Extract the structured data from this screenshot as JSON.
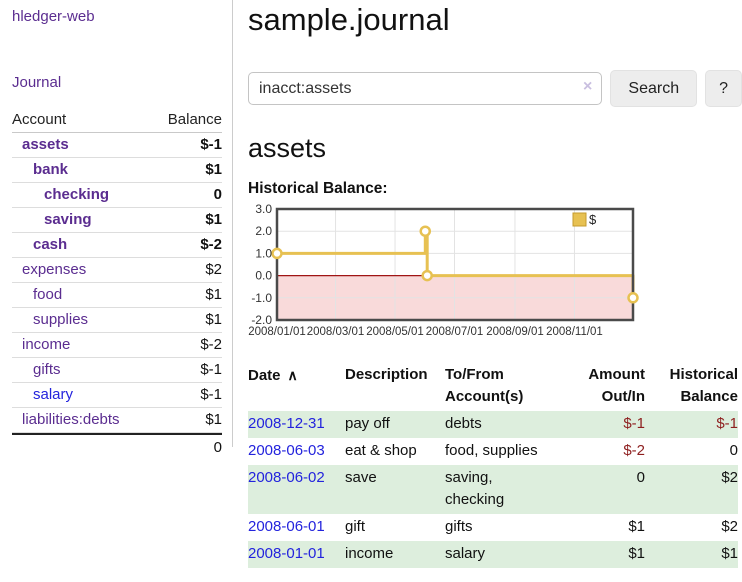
{
  "app_title": "hledger-web",
  "sidebar": {
    "journal_link": "Journal",
    "accounts_table": {
      "col_account": "Account",
      "col_balance": "Balance",
      "rows": [
        {
          "name": "assets",
          "indent": 0,
          "bold": true,
          "blue": false,
          "balance": "$-1",
          "neg": "strong"
        },
        {
          "name": "bank",
          "indent": 1,
          "bold": true,
          "blue": false,
          "balance": "$1",
          "neg": "none"
        },
        {
          "name": "checking",
          "indent": 2,
          "bold": true,
          "blue": false,
          "balance": "0",
          "neg": "none"
        },
        {
          "name": "saving",
          "indent": 2,
          "bold": true,
          "blue": false,
          "balance": "$1",
          "neg": "none"
        },
        {
          "name": "cash",
          "indent": 1,
          "bold": true,
          "blue": false,
          "balance": "$-2",
          "neg": "strong"
        },
        {
          "name": "expenses",
          "indent": 0,
          "bold": false,
          "blue": false,
          "balance": "$2",
          "neg": "none"
        },
        {
          "name": "food",
          "indent": 1,
          "bold": false,
          "blue": false,
          "balance": "$1",
          "neg": "none"
        },
        {
          "name": "supplies",
          "indent": 1,
          "bold": false,
          "blue": false,
          "balance": "$1",
          "neg": "none"
        },
        {
          "name": "income",
          "indent": 0,
          "bold": false,
          "blue": false,
          "balance": "$-2",
          "neg": "faded"
        },
        {
          "name": "gifts",
          "indent": 1,
          "bold": false,
          "blue": false,
          "balance": "$-1",
          "neg": "faded"
        },
        {
          "name": "salary",
          "indent": 1,
          "bold": false,
          "blue": true,
          "balance": "$-1",
          "neg": "faded"
        },
        {
          "name": "liabilities:debts",
          "indent": 0,
          "bold": false,
          "blue": false,
          "balance": "$1",
          "neg": "none"
        }
      ],
      "total": "0"
    }
  },
  "main": {
    "title": "sample.journal",
    "search": {
      "value": "inacct:assets",
      "clear": "×",
      "button": "Search",
      "help": "?"
    },
    "account_heading": "assets",
    "register": {
      "headers": [
        "Date",
        "Description",
        "To/From Account(s)",
        "Amount Out/In",
        "Historical Balance"
      ],
      "sort_icon": "∧",
      "rows": [
        {
          "date": "2008-12-31",
          "description": "pay off",
          "accounts": "debts",
          "amount": "$-1",
          "amount_neg": true,
          "balance": "$-1",
          "balance_neg": true,
          "shaded": true
        },
        {
          "date": "2008-06-03",
          "description": "eat & shop",
          "accounts": "food, supplies",
          "amount": "$-2",
          "amount_neg": true,
          "balance": "0",
          "balance_neg": false,
          "shaded": false
        },
        {
          "date": "2008-06-02",
          "description": "save",
          "accounts": "saving, checking",
          "amount": "0",
          "amount_neg": false,
          "balance": "$2",
          "balance_neg": false,
          "shaded": true
        },
        {
          "date": "2008-06-01",
          "description": "gift",
          "accounts": "gifts",
          "amount": "$1",
          "amount_neg": false,
          "balance": "$2",
          "balance_neg": false,
          "shaded": false
        },
        {
          "date": "2008-01-01",
          "description": "income",
          "accounts": "salary",
          "amount": "$1",
          "amount_neg": false,
          "balance": "$1",
          "balance_neg": false,
          "shaded": true
        }
      ]
    }
  },
  "chart_data": {
    "type": "line",
    "title": "Historical Balance:",
    "step": true,
    "legend": "$",
    "legend_position": "top-right",
    "grid": true,
    "x_start": "2008-01-01",
    "x_end": "2008-12-31",
    "ylim": [
      -2,
      3
    ],
    "yticks": [
      3,
      2,
      1,
      0,
      -1,
      -2
    ],
    "ytick_labels": [
      "3.0",
      "2.0",
      "1.0",
      "0.0",
      "-1.0",
      "-2.0"
    ],
    "xticks": [
      "2008-01-01",
      "2008-03-01",
      "2008-05-01",
      "2008-07-01",
      "2008-09-01",
      "2008-11-01"
    ],
    "xtick_labels": [
      "2008/01/01",
      "2008/03/01",
      "2008/05/01",
      "2008/07/01",
      "2008/09/01",
      "2008/11/01"
    ],
    "points": [
      {
        "date": "2008-01-01",
        "value": 1
      },
      {
        "date": "2008-06-01",
        "value": 2
      },
      {
        "date": "2008-06-03",
        "value": 0
      },
      {
        "date": "2008-12-31",
        "value": -1
      }
    ],
    "colors": {
      "line": "#e7c152",
      "marker_fill": "#ffffff",
      "legend_border": "#c49b2e",
      "negative_fill": "#f9dada",
      "zero_line": "#a01515",
      "grid": "#e3e3e3",
      "border": "#4a4a4a",
      "tick_text": "#333333"
    }
  }
}
